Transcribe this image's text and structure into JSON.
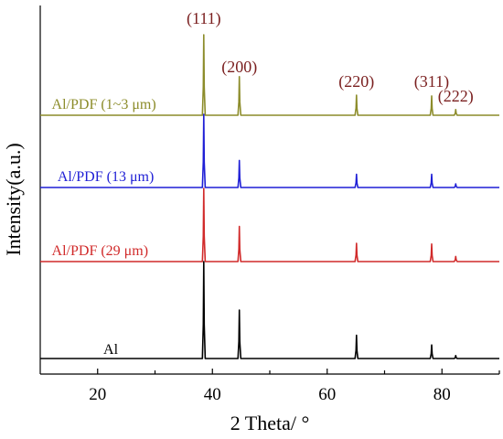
{
  "chart_data": {
    "type": "line",
    "xlabel": "2 Theta/ °",
    "ylabel": "Intensity(a.u.)",
    "xlim": [
      10,
      90
    ],
    "xticks": [
      "20",
      "40",
      "60",
      "80"
    ],
    "grid": false,
    "y_ticks_shown": false,
    "peak_labels": [
      {
        "text": "(111)",
        "x": 38.5,
        "color": "#7a1f1f"
      },
      {
        "text": "(200)",
        "x": 44.7,
        "color": "#7a1f1f"
      },
      {
        "text": "(220)",
        "x": 65.1,
        "color": "#7a1f1f"
      },
      {
        "text": "(311)",
        "x": 78.2,
        "color": "#7a1f1f"
      },
      {
        "text": "(222)",
        "x": 82.4,
        "color": "#7a1f1f"
      }
    ],
    "series": [
      {
        "name": "Al/PDF (1~3 μm)",
        "color": "#8c8c2a",
        "label_x": 12,
        "peaks": [
          {
            "x": 38.5,
            "height": 1.0
          },
          {
            "x": 44.7,
            "height": 0.48
          },
          {
            "x": 65.1,
            "height": 0.25
          },
          {
            "x": 78.2,
            "height": 0.24
          },
          {
            "x": 82.4,
            "height": 0.07
          }
        ]
      },
      {
        "name": "Al/PDF (13 μm)",
        "color": "#1f1fd6",
        "label_x": 13,
        "peaks": [
          {
            "x": 38.5,
            "height": 1.0
          },
          {
            "x": 44.7,
            "height": 0.37
          },
          {
            "x": 65.1,
            "height": 0.18
          },
          {
            "x": 78.2,
            "height": 0.18
          },
          {
            "x": 82.4,
            "height": 0.05
          }
        ]
      },
      {
        "name": "Al/PDF (29 μm)",
        "color": "#d12a2a",
        "label_x": 12,
        "peaks": [
          {
            "x": 38.5,
            "height": 1.0
          },
          {
            "x": 44.7,
            "height": 0.48
          },
          {
            "x": 65.1,
            "height": 0.25
          },
          {
            "x": 78.2,
            "height": 0.24
          },
          {
            "x": 82.4,
            "height": 0.07
          }
        ]
      },
      {
        "name": "Al",
        "color": "#000000",
        "label_x": 21,
        "peaks": [
          {
            "x": 38.5,
            "height": 1.0
          },
          {
            "x": 44.7,
            "height": 0.5
          },
          {
            "x": 65.1,
            "height": 0.24
          },
          {
            "x": 78.2,
            "height": 0.14
          },
          {
            "x": 82.4,
            "height": 0.03
          }
        ]
      }
    ]
  }
}
